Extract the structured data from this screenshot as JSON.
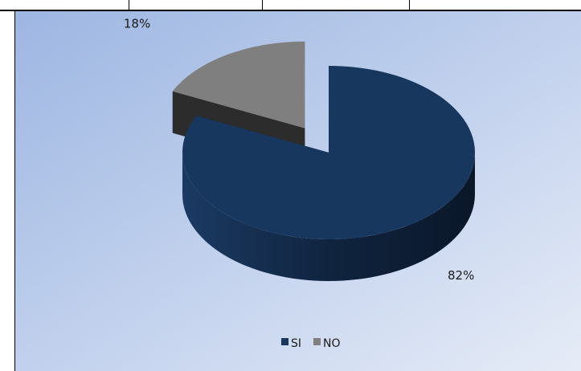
{
  "chart_data": {
    "type": "pie",
    "categories": [
      "SI",
      "NO"
    ],
    "values": [
      82,
      18
    ],
    "data_labels": [
      "82%",
      "18%"
    ],
    "legend": [
      "SI",
      "NO"
    ],
    "legend_position": "bottom",
    "colors": [
      "#17375E",
      "#7F7F7F"
    ],
    "exploded": "NO",
    "style": "3d"
  }
}
